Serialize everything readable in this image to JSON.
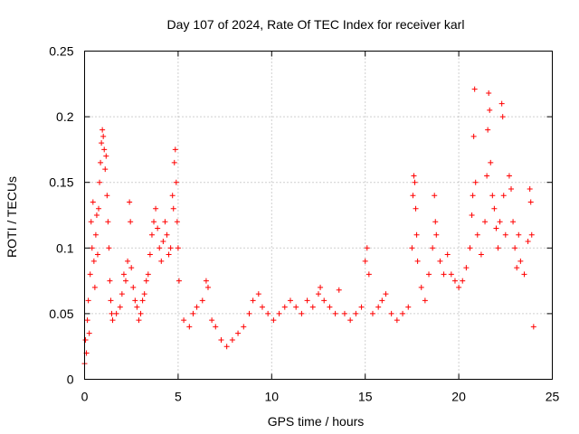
{
  "chart_data": {
    "type": "scatter",
    "title": "Day 107 of 2024, Rate Of TEC Index for receiver karl",
    "xlabel": "GPS time / hours",
    "ylabel": "ROTI / TECUs",
    "xlim": [
      0,
      25
    ],
    "ylim": [
      0,
      0.25
    ],
    "xticks": [
      "0",
      "5",
      "10",
      "15",
      "20",
      "25"
    ],
    "yticks": [
      "0",
      "0.05",
      "0.1",
      "0.15",
      "0.2",
      "0.25"
    ],
    "grid": true,
    "marker": "plus",
    "color": "#ff0000",
    "series": [
      {
        "values": [
          [
            0.0,
            0.012
          ],
          [
            0.05,
            0.03
          ],
          [
            0.1,
            0.02
          ],
          [
            0.15,
            0.045
          ],
          [
            0.2,
            0.06
          ],
          [
            0.25,
            0.035
          ],
          [
            0.3,
            0.08
          ],
          [
            0.35,
            0.12
          ],
          [
            0.4,
            0.1
          ],
          [
            0.45,
            0.135
          ],
          [
            0.5,
            0.09
          ],
          [
            0.55,
            0.07
          ],
          [
            0.6,
            0.11
          ],
          [
            0.65,
            0.125
          ],
          [
            0.7,
            0.095
          ],
          [
            0.75,
            0.13
          ],
          [
            0.8,
            0.15
          ],
          [
            0.85,
            0.165
          ],
          [
            0.9,
            0.18
          ],
          [
            0.95,
            0.19
          ],
          [
            1.0,
            0.185
          ],
          [
            1.05,
            0.175
          ],
          [
            1.1,
            0.16
          ],
          [
            1.15,
            0.17
          ],
          [
            1.2,
            0.14
          ],
          [
            1.25,
            0.12
          ],
          [
            1.3,
            0.1
          ],
          [
            1.35,
            0.075
          ],
          [
            1.4,
            0.06
          ],
          [
            1.45,
            0.05
          ],
          [
            1.5,
            0.045
          ],
          [
            1.7,
            0.05
          ],
          [
            1.9,
            0.055
          ],
          [
            2.0,
            0.065
          ],
          [
            2.1,
            0.08
          ],
          [
            2.2,
            0.075
          ],
          [
            2.3,
            0.09
          ],
          [
            2.4,
            0.135
          ],
          [
            2.45,
            0.12
          ],
          [
            2.5,
            0.085
          ],
          [
            2.6,
            0.07
          ],
          [
            2.7,
            0.06
          ],
          [
            2.8,
            0.055
          ],
          [
            2.9,
            0.045
          ],
          [
            3.0,
            0.05
          ],
          [
            3.1,
            0.06
          ],
          [
            3.2,
            0.065
          ],
          [
            3.3,
            0.075
          ],
          [
            3.4,
            0.08
          ],
          [
            3.5,
            0.095
          ],
          [
            3.6,
            0.11
          ],
          [
            3.7,
            0.12
          ],
          [
            3.8,
            0.13
          ],
          [
            3.9,
            0.115
          ],
          [
            4.0,
            0.1
          ],
          [
            4.1,
            0.09
          ],
          [
            4.2,
            0.105
          ],
          [
            4.3,
            0.12
          ],
          [
            4.4,
            0.11
          ],
          [
            4.5,
            0.095
          ],
          [
            4.6,
            0.1
          ],
          [
            4.7,
            0.14
          ],
          [
            4.75,
            0.13
          ],
          [
            4.8,
            0.165
          ],
          [
            4.85,
            0.175
          ],
          [
            4.9,
            0.15
          ],
          [
            4.95,
            0.12
          ],
          [
            5.0,
            0.1
          ],
          [
            5.05,
            0.075
          ],
          [
            5.3,
            0.045
          ],
          [
            5.6,
            0.04
          ],
          [
            5.8,
            0.05
          ],
          [
            6.0,
            0.055
          ],
          [
            6.3,
            0.06
          ],
          [
            6.5,
            0.075
          ],
          [
            6.6,
            0.07
          ],
          [
            6.8,
            0.045
          ],
          [
            7.0,
            0.04
          ],
          [
            7.3,
            0.03
          ],
          [
            7.6,
            0.025
          ],
          [
            7.9,
            0.03
          ],
          [
            8.2,
            0.035
          ],
          [
            8.5,
            0.04
          ],
          [
            8.8,
            0.05
          ],
          [
            9.0,
            0.06
          ],
          [
            9.3,
            0.065
          ],
          [
            9.5,
            0.055
          ],
          [
            9.8,
            0.05
          ],
          [
            10.1,
            0.045
          ],
          [
            10.4,
            0.05
          ],
          [
            10.7,
            0.055
          ],
          [
            11.0,
            0.06
          ],
          [
            11.3,
            0.055
          ],
          [
            11.6,
            0.05
          ],
          [
            11.9,
            0.06
          ],
          [
            12.2,
            0.055
          ],
          [
            12.5,
            0.065
          ],
          [
            12.6,
            0.07
          ],
          [
            12.8,
            0.06
          ],
          [
            13.1,
            0.055
          ],
          [
            13.4,
            0.05
          ],
          [
            13.6,
            0.068
          ],
          [
            13.9,
            0.05
          ],
          [
            14.2,
            0.045
          ],
          [
            14.5,
            0.05
          ],
          [
            14.8,
            0.055
          ],
          [
            15.0,
            0.09
          ],
          [
            15.1,
            0.1
          ],
          [
            15.2,
            0.08
          ],
          [
            15.4,
            0.05
          ],
          [
            15.7,
            0.055
          ],
          [
            15.9,
            0.06
          ],
          [
            16.1,
            0.065
          ],
          [
            16.4,
            0.05
          ],
          [
            16.7,
            0.045
          ],
          [
            17.0,
            0.05
          ],
          [
            17.3,
            0.055
          ],
          [
            17.5,
            0.1
          ],
          [
            17.55,
            0.14
          ],
          [
            17.6,
            0.155
          ],
          [
            17.65,
            0.15
          ],
          [
            17.7,
            0.13
          ],
          [
            17.75,
            0.11
          ],
          [
            17.8,
            0.09
          ],
          [
            18.0,
            0.07
          ],
          [
            18.2,
            0.06
          ],
          [
            18.4,
            0.08
          ],
          [
            18.6,
            0.1
          ],
          [
            18.7,
            0.14
          ],
          [
            18.75,
            0.12
          ],
          [
            18.8,
            0.11
          ],
          [
            19.0,
            0.09
          ],
          [
            19.2,
            0.08
          ],
          [
            19.4,
            0.095
          ],
          [
            19.6,
            0.08
          ],
          [
            19.8,
            0.075
          ],
          [
            20.0,
            0.07
          ],
          [
            20.2,
            0.075
          ],
          [
            20.4,
            0.085
          ],
          [
            20.6,
            0.1
          ],
          [
            20.7,
            0.125
          ],
          [
            20.75,
            0.14
          ],
          [
            20.8,
            0.185
          ],
          [
            20.85,
            0.221
          ],
          [
            20.9,
            0.15
          ],
          [
            21.0,
            0.11
          ],
          [
            21.2,
            0.095
          ],
          [
            21.4,
            0.12
          ],
          [
            21.5,
            0.155
          ],
          [
            21.55,
            0.19
          ],
          [
            21.6,
            0.218
          ],
          [
            21.65,
            0.205
          ],
          [
            21.7,
            0.165
          ],
          [
            21.8,
            0.14
          ],
          [
            21.9,
            0.13
          ],
          [
            22.0,
            0.115
          ],
          [
            22.1,
            0.1
          ],
          [
            22.2,
            0.12
          ],
          [
            22.3,
            0.21
          ],
          [
            22.35,
            0.2
          ],
          [
            22.4,
            0.14
          ],
          [
            22.5,
            0.11
          ],
          [
            22.7,
            0.155
          ],
          [
            22.8,
            0.145
          ],
          [
            22.9,
            0.12
          ],
          [
            23.0,
            0.1
          ],
          [
            23.1,
            0.085
          ],
          [
            23.2,
            0.11
          ],
          [
            23.3,
            0.09
          ],
          [
            23.5,
            0.08
          ],
          [
            23.7,
            0.105
          ],
          [
            23.8,
            0.145
          ],
          [
            23.85,
            0.135
          ],
          [
            23.9,
            0.11
          ],
          [
            24.0,
            0.04
          ]
        ]
      }
    ]
  }
}
